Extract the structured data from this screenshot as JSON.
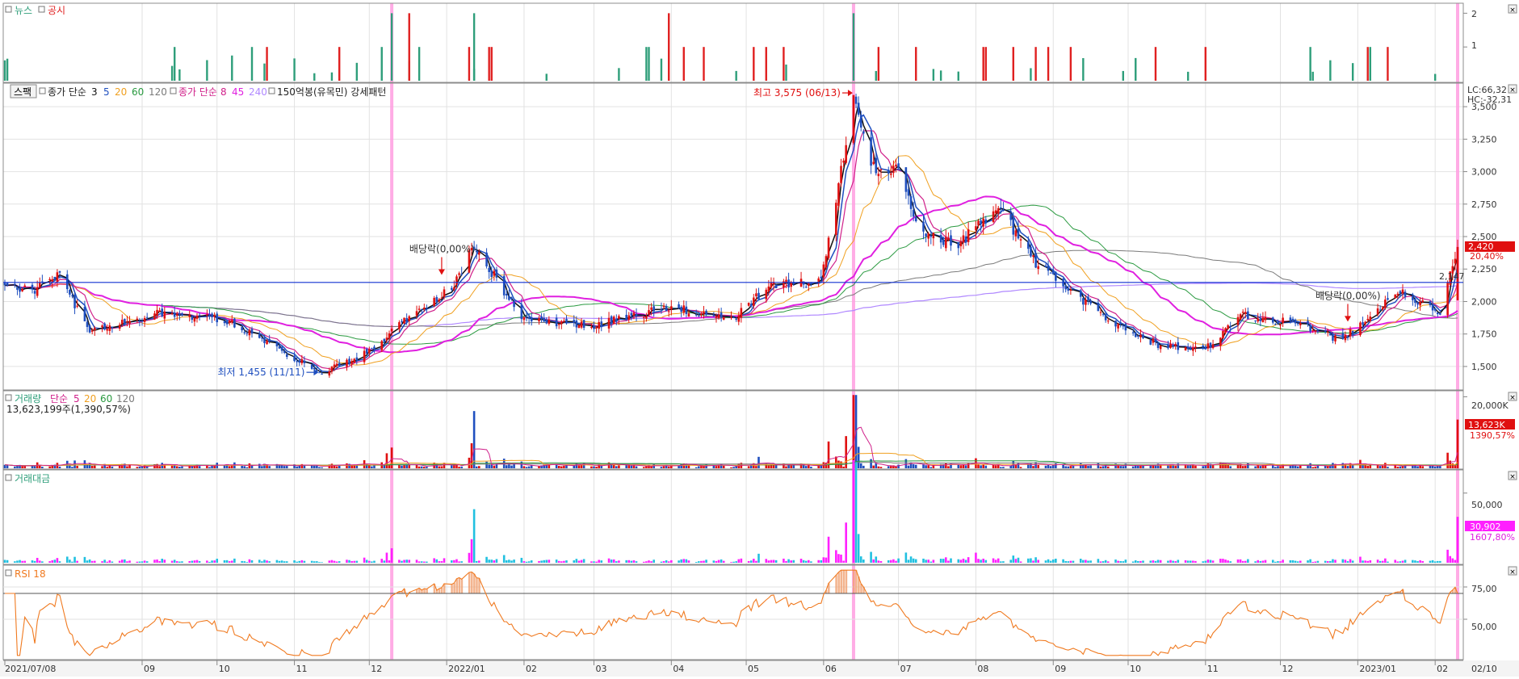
{
  "panels": {
    "news": {
      "legend": [
        {
          "label": "뉴스",
          "color": "#2e9e7a"
        },
        {
          "label": "공시",
          "color": "#e02020"
        }
      ],
      "y_ticks": [
        "2",
        "1"
      ]
    },
    "price": {
      "toggle_label": "스팩",
      "legend_groups": [
        {
          "label": "종가 단순",
          "color": "#222222",
          "periods": [
            {
              "label": "3",
              "color": "#111111"
            },
            {
              "label": "5",
              "color": "#1f4fbf"
            },
            {
              "label": "20",
              "color": "#f0a020"
            },
            {
              "label": "60",
              "color": "#2a9a40"
            },
            {
              "label": "120",
              "color": "#7a7a7a"
            }
          ]
        },
        {
          "label": "종가 단순",
          "color": "#d0208a",
          "periods": [
            {
              "label": "8",
              "color": "#d0208a"
            },
            {
              "label": "45",
              "color": "#e020e0"
            },
            {
              "label": "240",
              "color": "#b088ff"
            }
          ]
        }
      ],
      "pattern_label": "150억봉(유목민) 강세패턴",
      "lc_label": "LC:66,32",
      "hc_label": "HC:-32,31",
      "y_ticks": [
        "3,500",
        "3,250",
        "3,000",
        "2,750",
        "2,500",
        "2,250",
        "2,000",
        "1,750",
        "1,500"
      ],
      "hline_label": "2,147",
      "last_price": "2,420",
      "last_change": "20,40%",
      "ann_high": "최고 3,575 (06/13)",
      "ann_low": "최저 1,455 (11/11)",
      "ann_div1": "배당락(0,00%)",
      "ann_div2": "배당락(0,00%)"
    },
    "volume": {
      "legend_title": "거래량",
      "legend_ma": [
        {
          "label": "단순",
          "color": "#d0208a"
        },
        {
          "label": "5",
          "color": "#d0208a"
        },
        {
          "label": "20",
          "color": "#f0a020"
        },
        {
          "label": "60",
          "color": "#2a9a40"
        },
        {
          "label": "120",
          "color": "#7a7a7a"
        }
      ],
      "value_line": "13,623,199주(1,390,57%)",
      "y_tick": "20,000K",
      "badge_value": "13,623K",
      "badge_pct": "1390,57%"
    },
    "amount": {
      "legend_title": "거래대금",
      "y_tick": "50,000",
      "badge_value": "30,902",
      "badge_pct": "1607,80%"
    },
    "rsi": {
      "legend_title": "RSI 18",
      "y_ticks": [
        "75,00",
        "50,00"
      ]
    }
  },
  "xaxis": {
    "ticks": [
      "2021/07/08",
      "09",
      "10",
      "11",
      "12",
      "2022/01",
      "02",
      "03",
      "04",
      "05",
      "06",
      "07",
      "08",
      "09",
      "10",
      "11",
      "12",
      "2023/01",
      "02"
    ],
    "end_label": "02/10"
  },
  "chart_data": {
    "type": "candlestick",
    "x_range": [
      "2021/07/08",
      "2023/02/10"
    ],
    "ylim": [
      1400,
      3650
    ],
    "price_keypoints": [
      {
        "date": "2021/07/08",
        "close": 2140
      },
      {
        "date": "2021/07/20",
        "close": 2080
      },
      {
        "date": "2021/07/30",
        "close": 2220
      },
      {
        "date": "2021/08/10",
        "close": 1780
      },
      {
        "date": "2021/09/10",
        "close": 1920
      },
      {
        "date": "2021/10/05",
        "close": 1850
      },
      {
        "date": "2021/10/20",
        "close": 1700
      },
      {
        "date": "2021/11/11",
        "close": 1455
      },
      {
        "date": "2021/11/30",
        "close": 1600
      },
      {
        "date": "2021/12/15",
        "close": 1850
      },
      {
        "date": "2022/01/03",
        "close": 2100
      },
      {
        "date": "2022/01/12",
        "close": 2430
      },
      {
        "date": "2022/02/01",
        "close": 1850
      },
      {
        "date": "2022/03/01",
        "close": 1820
      },
      {
        "date": "2022/04/01",
        "close": 1960
      },
      {
        "date": "2022/04/25",
        "close": 1850
      },
      {
        "date": "2022/05/10",
        "close": 2120
      },
      {
        "date": "2022/05/31",
        "close": 2150
      },
      {
        "date": "2022/06/13",
        "close": 3575
      },
      {
        "date": "2022/06/20",
        "close": 3050
      },
      {
        "date": "2022/07/01",
        "close": 3000
      },
      {
        "date": "2022/07/10",
        "close": 2520
      },
      {
        "date": "2022/07/25",
        "close": 2450
      },
      {
        "date": "2022/08/10",
        "close": 2730
      },
      {
        "date": "2022/08/25",
        "close": 2300
      },
      {
        "date": "2022/09/10",
        "close": 2050
      },
      {
        "date": "2022/09/30",
        "close": 1780
      },
      {
        "date": "2022/10/15",
        "close": 1650
      },
      {
        "date": "2022/11/01",
        "close": 1630
      },
      {
        "date": "2022/11/15",
        "close": 1900
      },
      {
        "date": "2022/12/10",
        "close": 1820
      },
      {
        "date": "2022/12/25",
        "close": 1700
      },
      {
        "date": "2023/01/10",
        "close": 1960
      },
      {
        "date": "2023/01/20",
        "close": 2070
      },
      {
        "date": "2023/02/03",
        "close": 1900
      },
      {
        "date": "2023/02/10",
        "close": 2420
      }
    ],
    "horizontal_line": 2147,
    "high": {
      "value": 3575,
      "date": "06/13"
    },
    "low": {
      "value": 1455,
      "date": "11/11"
    },
    "last": {
      "close": 2420,
      "change_pct": 20.4
    },
    "volume_last_k": 13623,
    "volume_ylim_k": [
      0,
      21000
    ],
    "amount_last": 30902,
    "amount_ylim": [
      0,
      62000
    ],
    "rsi_last": 70,
    "rsi_ylim": [
      20,
      90
    ],
    "rsi_reference_line": 70,
    "news_ylim": [
      0,
      2.2
    ],
    "event_markers": [
      "2021/12/10",
      "2022/06/13",
      "2023/02/10"
    ]
  },
  "colors": {
    "up": "#e01010",
    "down": "#1f4fbf",
    "news": "#2e9e7a",
    "disclosure": "#e02020",
    "rsi": "#f07a20",
    "marker": "#ff9ee0",
    "hline": "#1030d0",
    "amount_up": "#ff20ff",
    "amount_down": "#20c0e0"
  }
}
